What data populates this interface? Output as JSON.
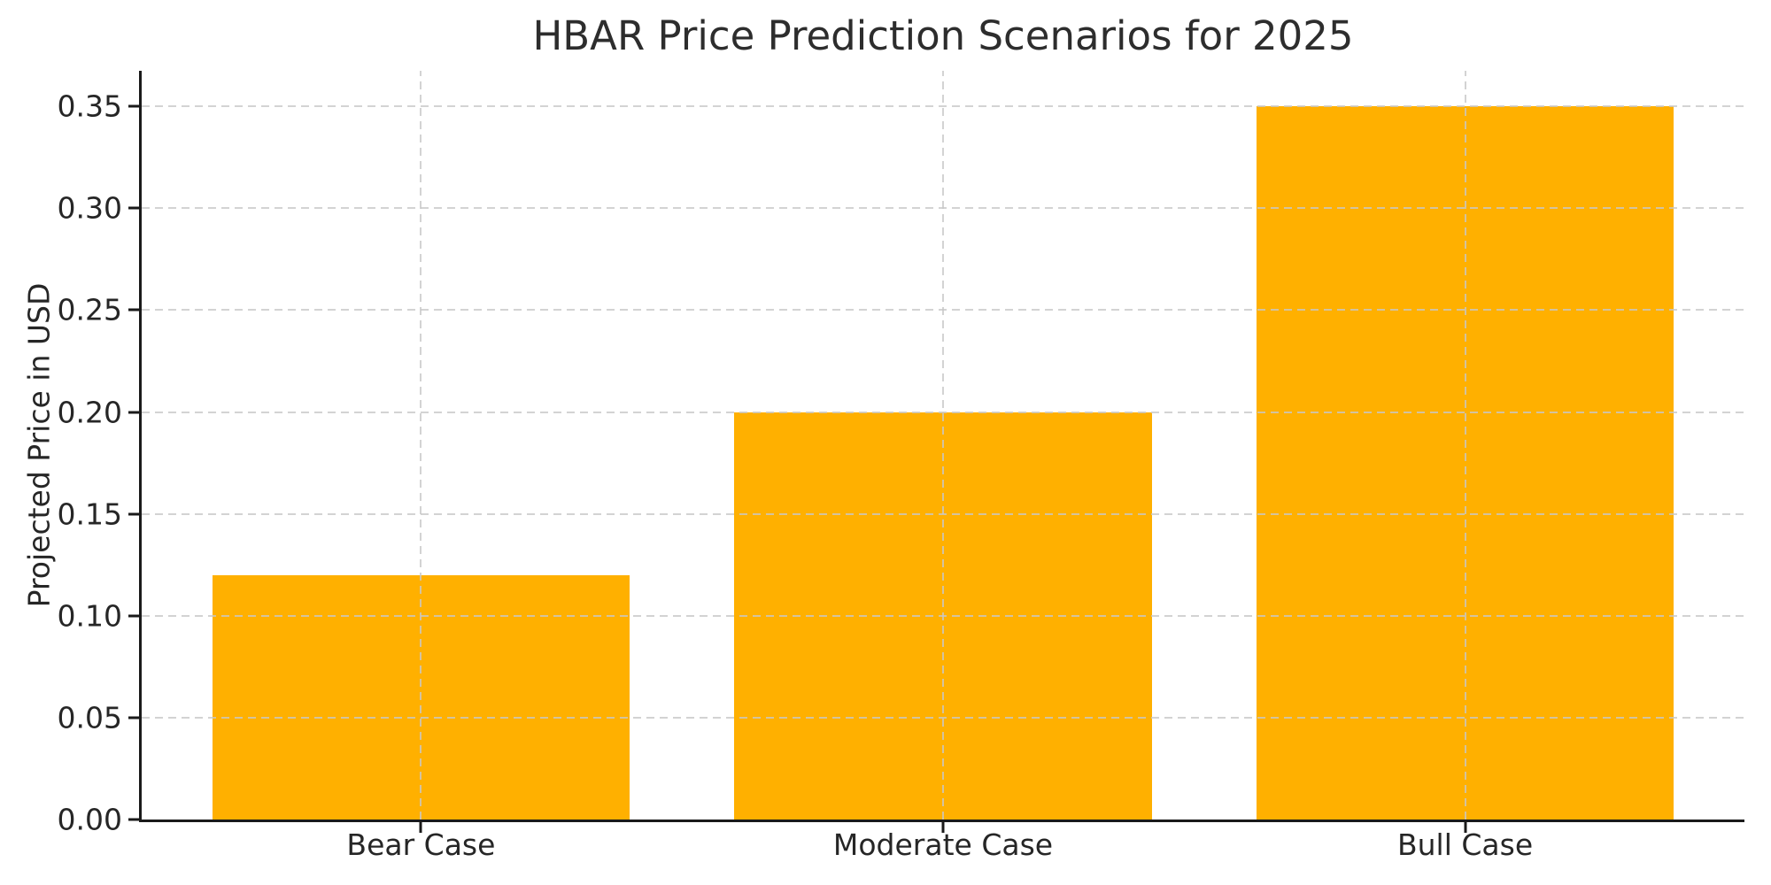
{
  "chart_data": {
    "type": "bar",
    "title": "HBAR Price Prediction Scenarios for 2025",
    "xlabel": "",
    "ylabel": "Projected Price in USD",
    "categories": [
      "Bear Case",
      "Moderate Case",
      "Bull Case"
    ],
    "values": [
      0.12,
      0.2,
      0.35
    ],
    "yticks": [
      {
        "value": 0.0,
        "label": "0.00"
      },
      {
        "value": 0.05,
        "label": "0.05"
      },
      {
        "value": 0.1,
        "label": "0.10"
      },
      {
        "value": 0.15,
        "label": "0.15"
      },
      {
        "value": 0.2,
        "label": "0.20"
      },
      {
        "value": 0.25,
        "label": "0.25"
      },
      {
        "value": 0.3,
        "label": "0.30"
      },
      {
        "value": 0.35,
        "label": "0.35"
      }
    ],
    "ylim": [
      0,
      0.3675
    ],
    "xlim": [
      -0.535,
      2.535
    ],
    "bar_width": 0.8,
    "grid": "both, dashed, drawn above bars",
    "legend": "none",
    "colors": {
      "bar": "#FFB000",
      "grid": "#c8c8c8",
      "spine": "#1a1a1a",
      "text": "#262626",
      "background": "#ffffff"
    }
  }
}
